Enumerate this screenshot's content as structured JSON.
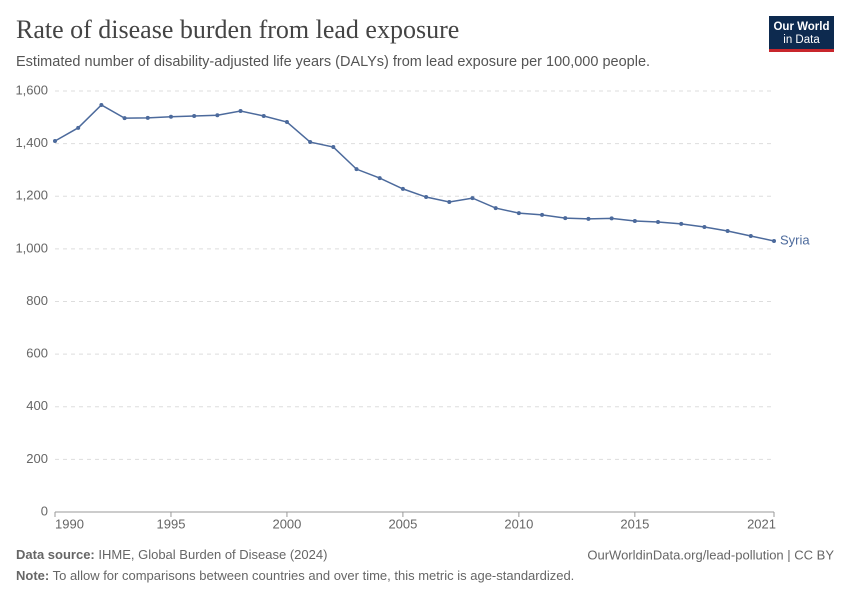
{
  "header": {
    "title": "Rate of disease burden from lead exposure",
    "subtitle": "Estimated number of disability-adjusted life years (DALYs) from lead exposure per 100,000 people.",
    "logo": [
      "Our World",
      "in Data"
    ]
  },
  "chart_data": {
    "type": "line",
    "x": [
      1990,
      1991,
      1992,
      1993,
      1994,
      1995,
      1996,
      1997,
      1998,
      1999,
      2000,
      2001,
      2002,
      2003,
      2004,
      2005,
      2006,
      2007,
      2008,
      2009,
      2010,
      2011,
      2012,
      2013,
      2014,
      2015,
      2016,
      2017,
      2018,
      2019,
      2020,
      2021
    ],
    "series": [
      {
        "name": "Syria",
        "color": "#4c6a9c",
        "values": [
          1410,
          1460,
          1547,
          1497,
          1498,
          1502,
          1505,
          1508,
          1524,
          1505,
          1482,
          1406,
          1387,
          1303,
          1269,
          1228,
          1197,
          1178,
          1193,
          1155,
          1136,
          1129,
          1117,
          1114,
          1116,
          1106,
          1102,
          1095,
          1083,
          1068,
          1049,
          1030
        ]
      }
    ],
    "xlim": [
      1990,
      2021
    ],
    "xticks": [
      1990,
      1995,
      2000,
      2005,
      2010,
      2015,
      2021
    ],
    "ylim": [
      0,
      1600
    ],
    "yticks": [
      0,
      200,
      400,
      600,
      800,
      {
        "value": 1000,
        "label": "1,000"
      },
      {
        "value": 1200,
        "label": "1,200"
      },
      {
        "value": 1400,
        "label": "1,400"
      },
      {
        "value": 1600,
        "label": "1,600"
      }
    ],
    "grid": true
  },
  "footer": {
    "source_label": "Data source:",
    "source": "IHME, Global Burden of Disease (2024)",
    "url": "OurWorldinData.org/lead-pollution | CC BY",
    "note_label": "Note:",
    "note": "To allow for comparisons between countries and over time, this metric is age-standardized."
  }
}
